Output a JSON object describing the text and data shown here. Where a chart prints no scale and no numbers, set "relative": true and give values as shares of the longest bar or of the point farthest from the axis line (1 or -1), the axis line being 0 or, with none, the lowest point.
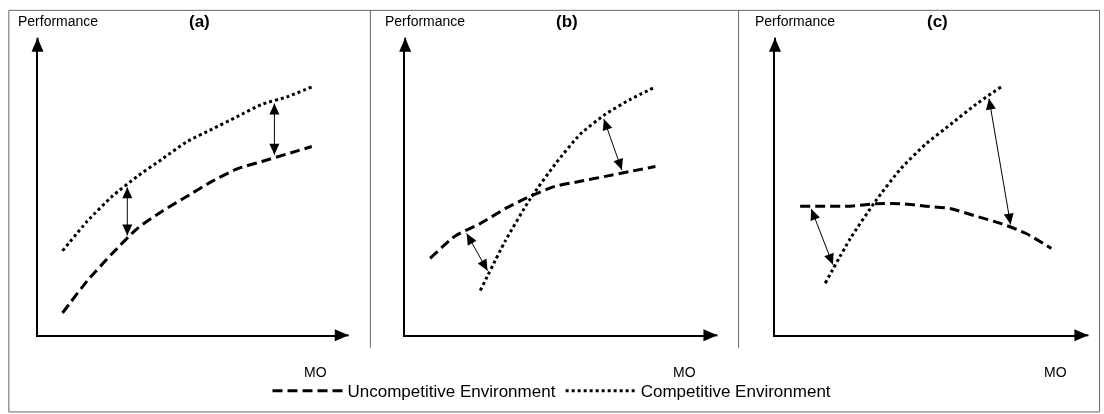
{
  "chart_data": [
    {
      "type": "line",
      "title": "(a)",
      "xlabel": "MO",
      "ylabel": "Performance",
      "relative": true,
      "legend": "bottom",
      "categories": [
        null,
        null,
        null,
        null,
        null,
        null,
        null,
        null,
        null,
        null,
        null,
        null,
        null
      ],
      "series": [
        {
          "name": "Uncompetitive Environment",
          "color": "#000000",
          "line_style": "dashed",
          "values": [
            null,
            0.09,
            0.22,
            0.33,
            0.43,
            0.5,
            0.56,
            0.62,
            0.67,
            0.7,
            0.73,
            0.76,
            null
          ]
        },
        {
          "name": "Competitive Environment",
          "color": "#000000",
          "line_style": "dotted",
          "values": [
            null,
            0.34,
            0.46,
            0.56,
            0.64,
            0.71,
            0.78,
            0.83,
            0.88,
            0.93,
            0.96,
            1,
            null
          ]
        }
      ]
    },
    {
      "type": "line",
      "title": "(b)",
      "xlabel": "MO",
      "ylabel": "Performance",
      "relative": true,
      "categories": [
        null,
        null,
        null,
        null,
        null,
        null,
        null,
        null,
        null,
        null,
        null,
        null,
        null
      ],
      "series": [
        {
          "color": "#000000",
          "line_style": "dashed",
          "values": [
            null,
            0.31,
            0.4,
            0.45,
            0.51,
            0.56,
            0.6,
            0.62,
            0.64,
            0.66,
            0.68,
            null,
            null
          ]
        },
        {
          "color": "#000000",
          "line_style": "dotted",
          "values": [
            null,
            null,
            null,
            0.18,
            0.38,
            0.55,
            0.69,
            0.81,
            0.89,
            0.95,
            1,
            null,
            null
          ]
        }
      ]
    },
    {
      "type": "line",
      "title": "(c)",
      "xlabel": "MO",
      "ylabel": "Performance",
      "relative": true,
      "categories": [
        null,
        null,
        null,
        null,
        null,
        null,
        null,
        null,
        null,
        null,
        null,
        null,
        null
      ],
      "series": [
        {
          "color": "#000000",
          "line_style": "dashed",
          "values": [
            null,
            0.52,
            0.52,
            0.52,
            0.53,
            0.53,
            0.52,
            0.51,
            0.48,
            0.45,
            0.41,
            0.35,
            null
          ]
        },
        {
          "color": "#000000",
          "line_style": "dotted",
          "values": [
            null,
            null,
            0.21,
            0.39,
            0.54,
            0.67,
            0.77,
            0.85,
            0.93,
            1,
            null,
            null,
            null
          ]
        }
      ]
    }
  ]
}
